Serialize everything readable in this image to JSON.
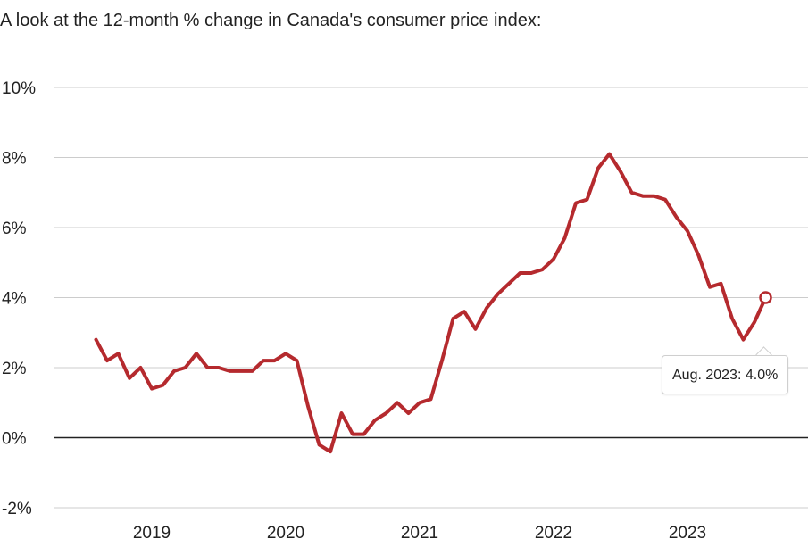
{
  "title": "A look at the 12-month % change in Canada's consumer price index:",
  "tooltip": {
    "text": "Aug. 2023: 4.0%"
  },
  "colors": {
    "line": "#b52a2e",
    "grid": "#cccccc",
    "zero": "#222222"
  },
  "chart_data": {
    "type": "line",
    "title": "A look at the 12-month % change in Canada's consumer price index:",
    "xlabel": "",
    "ylabel": "",
    "ylim": [
      -2,
      10
    ],
    "y_ticks": [
      -2,
      0,
      2,
      4,
      6,
      8,
      10
    ],
    "y_tick_labels": [
      "-2%",
      "0%",
      "2%",
      "4%",
      "6%",
      "8%",
      "10%"
    ],
    "x_tick_labels": [
      "2019",
      "2020",
      "2021",
      "2022",
      "2023"
    ],
    "grid": true,
    "highlight": {
      "x": "2023-08",
      "y": 4.0
    },
    "x": [
      "2018-08",
      "2018-09",
      "2018-10",
      "2018-11",
      "2018-12",
      "2019-01",
      "2019-02",
      "2019-03",
      "2019-04",
      "2019-05",
      "2019-06",
      "2019-07",
      "2019-08",
      "2019-09",
      "2019-10",
      "2019-11",
      "2019-12",
      "2020-01",
      "2020-02",
      "2020-03",
      "2020-04",
      "2020-05",
      "2020-06",
      "2020-07",
      "2020-08",
      "2020-09",
      "2020-10",
      "2020-11",
      "2020-12",
      "2021-01",
      "2021-02",
      "2021-03",
      "2021-04",
      "2021-05",
      "2021-06",
      "2021-07",
      "2021-08",
      "2021-09",
      "2021-10",
      "2021-11",
      "2021-12",
      "2022-01",
      "2022-02",
      "2022-03",
      "2022-04",
      "2022-05",
      "2022-06",
      "2022-07",
      "2022-08",
      "2022-09",
      "2022-10",
      "2022-11",
      "2022-12",
      "2023-01",
      "2023-02",
      "2023-03",
      "2023-04",
      "2023-05",
      "2023-06",
      "2023-07",
      "2023-08"
    ],
    "series": [
      {
        "values": [
          2.8,
          2.2,
          2.4,
          1.7,
          2.0,
          1.4,
          1.5,
          1.9,
          2.0,
          2.4,
          2.0,
          2.0,
          1.9,
          1.9,
          1.9,
          2.2,
          2.2,
          2.4,
          2.2,
          0.9,
          -0.2,
          -0.4,
          0.7,
          0.1,
          0.1,
          0.5,
          0.7,
          1.0,
          0.7,
          1.0,
          1.1,
          2.2,
          3.4,
          3.6,
          3.1,
          3.7,
          4.1,
          4.4,
          4.7,
          4.7,
          4.8,
          5.1,
          5.7,
          6.7,
          6.8,
          7.7,
          8.1,
          7.6,
          7.0,
          6.9,
          6.9,
          6.8,
          6.3,
          5.9,
          5.2,
          4.3,
          4.4,
          3.4,
          2.8,
          3.3,
          4.0
        ]
      }
    ]
  }
}
